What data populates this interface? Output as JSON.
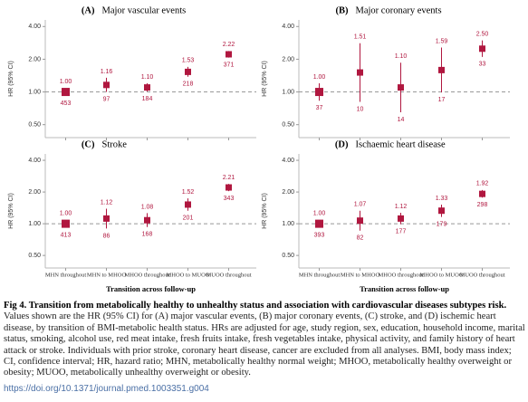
{
  "chart_data": [
    {
      "type": "forest",
      "label": "(A)",
      "title": "Major vascular events",
      "ylabel": "HR (95% CI)",
      "log_scale": true,
      "color": "#b0173f",
      "ylim": [
        0.38,
        4.6
      ],
      "yticks": [
        {
          "value": 0.5,
          "label": "0.50"
        },
        {
          "value": 1,
          "label": "1.00"
        },
        {
          "value": 2,
          "label": "2.00"
        },
        {
          "value": 4,
          "label": "4.00"
        }
      ],
      "reference_line": 1,
      "values": [
        1.0,
        1.16,
        1.1,
        1.53,
        2.22
      ],
      "value_labels": [
        "1.00",
        "1.16",
        "1.10",
        "1.53",
        "2.22"
      ],
      "ci_low": [
        0.97,
        1.0,
        1.01,
        1.38,
        2.07
      ],
      "ci_high": [
        1.03,
        1.35,
        1.2,
        1.7,
        2.38
      ],
      "n": [
        453,
        97,
        184,
        218,
        371
      ]
    },
    {
      "type": "forest",
      "label": "(B)",
      "title": "Major coronary events",
      "ylabel": "HR (95% CI)",
      "log_scale": true,
      "color": "#b0173f",
      "ylim": [
        0.38,
        4.6
      ],
      "yticks": [
        {
          "value": 0.5,
          "label": "0.50"
        },
        {
          "value": 1,
          "label": "1.00"
        },
        {
          "value": 2,
          "label": "2.00"
        },
        {
          "value": 4,
          "label": "4.00"
        }
      ],
      "reference_line": 1,
      "values": [
        1.0,
        1.51,
        1.1,
        1.59,
        2.5
      ],
      "value_labels": [
        "1.00",
        "1.51",
        "1.10",
        "1.59",
        "2.50"
      ],
      "ci_low": [
        0.83,
        0.81,
        0.65,
        0.99,
        2.1
      ],
      "ci_high": [
        1.2,
        2.81,
        1.86,
        2.56,
        2.98
      ],
      "n": [
        37,
        10,
        14,
        17,
        33
      ]
    },
    {
      "type": "forest",
      "label": "(C)",
      "title": "Stroke",
      "ylabel": "HR (95% CI)",
      "xlabel": "Transition across follow-up",
      "log_scale": true,
      "color": "#b0173f",
      "categories": [
        "MHN throughout",
        "MHN to MHOO",
        "MHOO throughout",
        "MHOO to MUOO",
        "MUOO throughout"
      ],
      "ylim": [
        0.38,
        4.6
      ],
      "yticks": [
        {
          "value": 0.5,
          "label": "0.50"
        },
        {
          "value": 1,
          "label": "1.00"
        },
        {
          "value": 2,
          "label": "2.00"
        },
        {
          "value": 4,
          "label": "4.00"
        }
      ],
      "reference_line": 1,
      "values": [
        1.0,
        1.12,
        1.08,
        1.52,
        2.21
      ],
      "value_labels": [
        "1.00",
        "1.12",
        "1.08",
        "1.52",
        "2.21"
      ],
      "ci_low": [
        0.96,
        0.9,
        0.93,
        1.33,
        2.04
      ],
      "ci_high": [
        1.04,
        1.39,
        1.26,
        1.74,
        2.39
      ],
      "n": [
        413,
        86,
        168,
        201,
        343
      ]
    },
    {
      "type": "forest",
      "label": "(D)",
      "title": "Ischaemic heart disease",
      "ylabel": "HR (95% CI)",
      "xlabel": "Transition across follow-up",
      "log_scale": true,
      "color": "#b0173f",
      "categories": [
        "MHN throughout",
        "MHN to MHOO",
        "MHOO throughout",
        "MHOO to MUOO",
        "MUOO throughout"
      ],
      "ylim": [
        0.38,
        4.6
      ],
      "yticks": [
        {
          "value": 0.5,
          "label": "0.50"
        },
        {
          "value": 1,
          "label": "1.00"
        },
        {
          "value": 2,
          "label": "2.00"
        },
        {
          "value": 4,
          "label": "4.00"
        }
      ],
      "reference_line": 1,
      "values": [
        1.0,
        1.07,
        1.12,
        1.33,
        1.92
      ],
      "value_labels": [
        "1.00",
        "1.07",
        "1.12",
        "1.33",
        "1.92"
      ],
      "ci_low": [
        0.93,
        0.86,
        0.99,
        1.16,
        1.77
      ],
      "ci_high": [
        1.07,
        1.33,
        1.27,
        1.52,
        2.09
      ],
      "n": [
        393,
        82,
        177,
        179,
        298
      ]
    }
  ],
  "caption": {
    "title": "Fig 4. Transition from metabolically healthy to unhealthy status and association with cardiovascular diseases subtypes risk.",
    "body": "Values shown are the HR (95% CI) for (A) major vascular events, (B) major coronary events, (C) stroke, and (D) ischemic heart disease, by transition of BMI-metabolic health status. HRs are adjusted for age, study region, sex, education, household income, marital status, smoking, alcohol use, red meat intake, fresh fruits intake, fresh vegetables intake, physical activity, and family history of heart attack or stroke. Individuals with prior stroke, coronary heart disease, cancer are excluded from all analyses. BMI, body mass index; CI, confidence interval; HR, hazard ratio; MHN, metabolically healthy normal weight; MHOO, metabolically healthy overweight or obesity; MUOO, metabolically unhealthy overweight or obesity."
  },
  "doi": "https://doi.org/10.1371/journal.pmed.1003351.g004"
}
